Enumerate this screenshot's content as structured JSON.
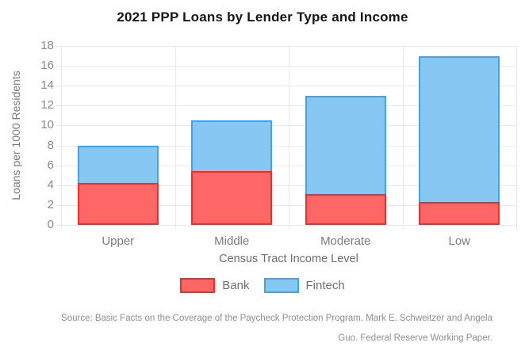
{
  "title": "2021 PPP Loans by Lender Type and Income",
  "chart_data": {
    "type": "bar",
    "stacked": true,
    "title": "2021 PPP Loans by Lender Type and Income",
    "categories": [
      "Upper",
      "Middle",
      "Moderate",
      "Low"
    ],
    "series": [
      {
        "name": "Bank",
        "values": [
          4.2,
          5.4,
          3.1,
          2.3
        ],
        "fill": "#ff6666",
        "border": "#f22b2b"
      },
      {
        "name": "Fintech",
        "values": [
          3.8,
          5.1,
          9.9,
          14.7
        ],
        "fill": "#86c7f3",
        "border": "#3fa3ed"
      }
    ],
    "stack_totals": [
      8.0,
      10.5,
      13.0,
      17.0
    ],
    "xlabel": "Census Tract Income Level",
    "ylabel": "Loans per 1000 Residents",
    "ylim": [
      0,
      18
    ],
    "ytick_step": 2,
    "yticks": [
      0,
      2,
      4,
      6,
      8,
      10,
      12,
      14,
      16,
      18
    ],
    "grid": true,
    "legend_position": "bottom",
    "colors": {
      "grid": "#e8e8e8",
      "tick_text": "#8a8a8a",
      "axis_text": "#7b7b7b"
    }
  },
  "source": {
    "line1": "Source: Basic Facts on the Coverage of the Paycheck Protection Program. Mark E. Schweitzer and Angela",
    "line2": "Guo. Federal Reserve Working Paper."
  }
}
